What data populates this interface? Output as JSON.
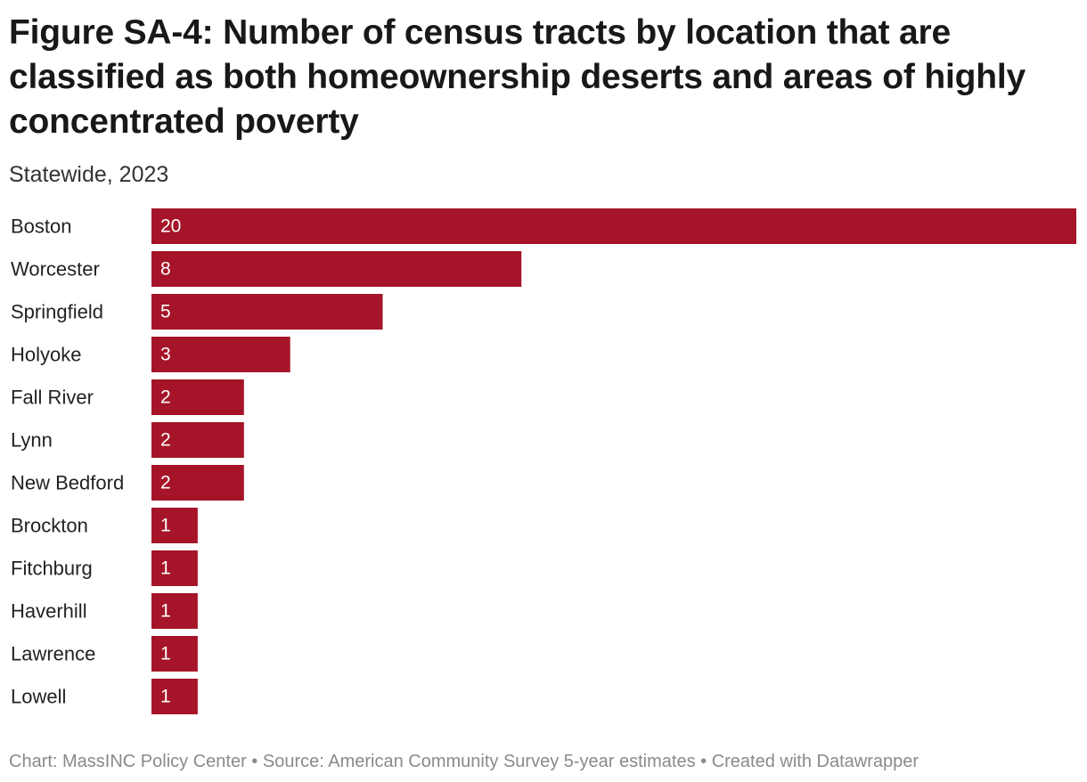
{
  "title": "Figure SA-4: Number of census tracts by location that are classified as both homeownership deserts and areas of highly concentrated poverty",
  "subtitle": "Statewide, 2023",
  "footer": "Chart: MassINC Policy Center • Source: American Community Survey 5-year estimates • Created with Datawrapper",
  "colors": {
    "bar": "#A51428",
    "value_label": "#FFFFFF"
  },
  "chart_data": {
    "type": "bar",
    "orientation": "horizontal",
    "categories": [
      "Boston",
      "Worcester",
      "Springfield",
      "Holyoke",
      "Fall River",
      "Lynn",
      "New Bedford",
      "Brockton",
      "Fitchburg",
      "Haverhill",
      "Lawrence",
      "Lowell"
    ],
    "values": [
      20,
      8,
      5,
      3,
      2,
      2,
      2,
      1,
      1,
      1,
      1,
      1
    ],
    "xlim": [
      0,
      20
    ],
    "value_labels_inside_bars": true,
    "grid": false,
    "legend": "none"
  }
}
